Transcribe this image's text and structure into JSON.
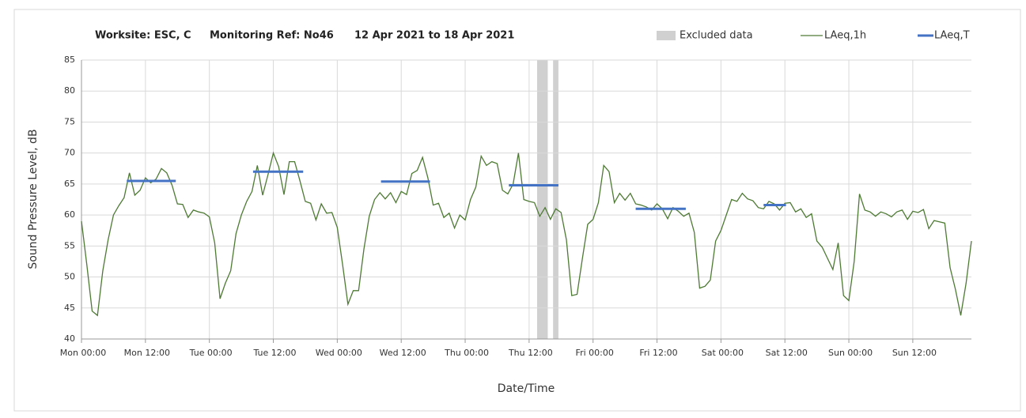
{
  "chart_data": {
    "type": "line",
    "title_items": [
      "Worksite: ESC, C",
      "Monitoring Ref: No46",
      "12 Apr 2021 to 18 Apr 2021"
    ],
    "xlabel": "Date/Time",
    "ylabel": "Sound Pressure Level, dB",
    "xlim": [
      0,
      167
    ],
    "ylim": [
      40,
      85
    ],
    "yticks": [
      40,
      45,
      50,
      55,
      60,
      65,
      70,
      75,
      80,
      85
    ],
    "xticks": [
      {
        "value": 0,
        "label": "Mon 00:00"
      },
      {
        "value": 12,
        "label": "Mon 12:00"
      },
      {
        "value": 24,
        "label": "Tue 00:00"
      },
      {
        "value": 36,
        "label": "Tue 12:00"
      },
      {
        "value": 48,
        "label": "Wed 00:00"
      },
      {
        "value": 60,
        "label": "Wed 12:00"
      },
      {
        "value": 72,
        "label": "Thu 00:00"
      },
      {
        "value": 84,
        "label": "Thu 12:00"
      },
      {
        "value": 96,
        "label": "Fri 00:00"
      },
      {
        "value": 108,
        "label": "Fri 12:00"
      },
      {
        "value": 120,
        "label": "Sat 00:00"
      },
      {
        "value": 132,
        "label": "Sat 12:00"
      },
      {
        "value": 144,
        "label": "Sun 00:00"
      },
      {
        "value": 156,
        "label": "Sun 12:00"
      }
    ],
    "grid": true,
    "excluded": {
      "name": "Excluded data",
      "color": "#d0d0d0",
      "x_start": [
        85.5,
        88.5
      ],
      "x_end": [
        87.5,
        89.5
      ]
    },
    "series": [
      {
        "name": "LAeq,1h",
        "color": "#4e7a34",
        "x": [
          0,
          1,
          2,
          3,
          4,
          5,
          6,
          7,
          8,
          9,
          10,
          11,
          12,
          13,
          14,
          15,
          16,
          17,
          18,
          19,
          20,
          21,
          22,
          23,
          24,
          25,
          26,
          27,
          28,
          29,
          30,
          31,
          32,
          33,
          34,
          35,
          36,
          37,
          38,
          39,
          40,
          41,
          42,
          43,
          44,
          45,
          46,
          47,
          48,
          49,
          50,
          51,
          52,
          53,
          54,
          55,
          56,
          57,
          58,
          59,
          60,
          61,
          62,
          63,
          64,
          65,
          66,
          67,
          68,
          69,
          70,
          71,
          72,
          73,
          74,
          75,
          76,
          77,
          78,
          79,
          80,
          81,
          82,
          83,
          84,
          85,
          86,
          87,
          88,
          89,
          90,
          91,
          92,
          93,
          94,
          95,
          96,
          97,
          98,
          99,
          100,
          101,
          102,
          103,
          104,
          105,
          106,
          107,
          108,
          109,
          110,
          111,
          112,
          113,
          114,
          115,
          116,
          117,
          118,
          119,
          120,
          121,
          122,
          123,
          124,
          125,
          126,
          127,
          128,
          129,
          130,
          131,
          132,
          133,
          134,
          135,
          136,
          137,
          138,
          139,
          140,
          141,
          142,
          143,
          144,
          145,
          146,
          147,
          148,
          149,
          150,
          151,
          152,
          153,
          154,
          155,
          156,
          157,
          158,
          159,
          160,
          161,
          162,
          163,
          164,
          165,
          166,
          167
        ],
        "values": [
          59,
          52,
          44.5,
          43.8,
          51,
          56,
          60,
          61.5,
          62.8,
          66.8,
          63.2,
          64,
          66,
          65.2,
          65.8,
          67.5,
          66.8,
          64.8,
          61.8,
          61.7,
          59.6,
          60.8,
          60.5,
          60.3,
          59.7,
          55.5,
          46.5,
          49,
          51,
          57,
          60,
          62.2,
          63.8,
          68,
          63.2,
          66.5,
          70,
          67.8,
          63.3,
          68.6,
          68.6,
          65.5,
          62.2,
          61.9,
          59.2,
          61.8,
          60.3,
          60.4,
          58,
          52,
          45.6,
          47.8,
          47.8,
          54.5,
          59.8,
          62.5,
          63.6,
          62.6,
          63.6,
          62,
          63.8,
          63.3,
          66.7,
          67.2,
          69.3,
          66,
          61.6,
          61.9,
          59.6,
          60.3,
          57.9,
          60,
          59.2,
          62.5,
          64.5,
          69.5,
          68,
          68.6,
          68.3,
          64,
          63.4,
          65,
          70,
          62.5,
          62.2,
          62,
          59.8,
          61.2,
          59.3,
          61,
          60.4,
          56,
          47,
          47.2,
          53,
          58.5,
          59.3,
          62,
          68,
          67,
          62,
          63.5,
          62.4,
          63.5,
          61.8,
          61.6,
          61.3,
          60.8,
          61.8,
          61,
          59.4,
          61.2,
          60.6,
          59.8,
          60.3,
          57.2,
          48.2,
          48.5,
          49.5,
          55.8,
          57.5,
          60,
          62.5,
          62.2,
          63.5,
          62.6,
          62.3,
          61.2,
          61,
          62.2,
          61.8,
          60.8,
          61.9,
          62,
          60.5,
          61,
          59.6,
          60.2,
          55.8,
          54.8,
          53,
          51.2,
          55.5,
          47,
          46.2,
          52.5,
          63.4,
          60.8,
          60.5,
          59.8,
          60.5,
          60.2,
          59.7,
          60.5,
          60.8,
          59.3,
          60.6,
          60.4,
          60.9,
          57.8,
          59.1,
          58.9,
          58.7,
          51.5,
          48,
          43.8,
          49,
          55.8
        ]
      },
      {
        "name": "LAeq,T",
        "color": "#4472c4",
        "x_start": [
          8.5,
          32.2,
          56.2,
          80.2,
          104,
          128
        ],
        "x_end": [
          17.7,
          41.6,
          65.4,
          89.5,
          113.4,
          132.2
        ],
        "values": [
          65.5,
          67,
          65.4,
          64.8,
          61,
          61.6
        ]
      }
    ]
  }
}
